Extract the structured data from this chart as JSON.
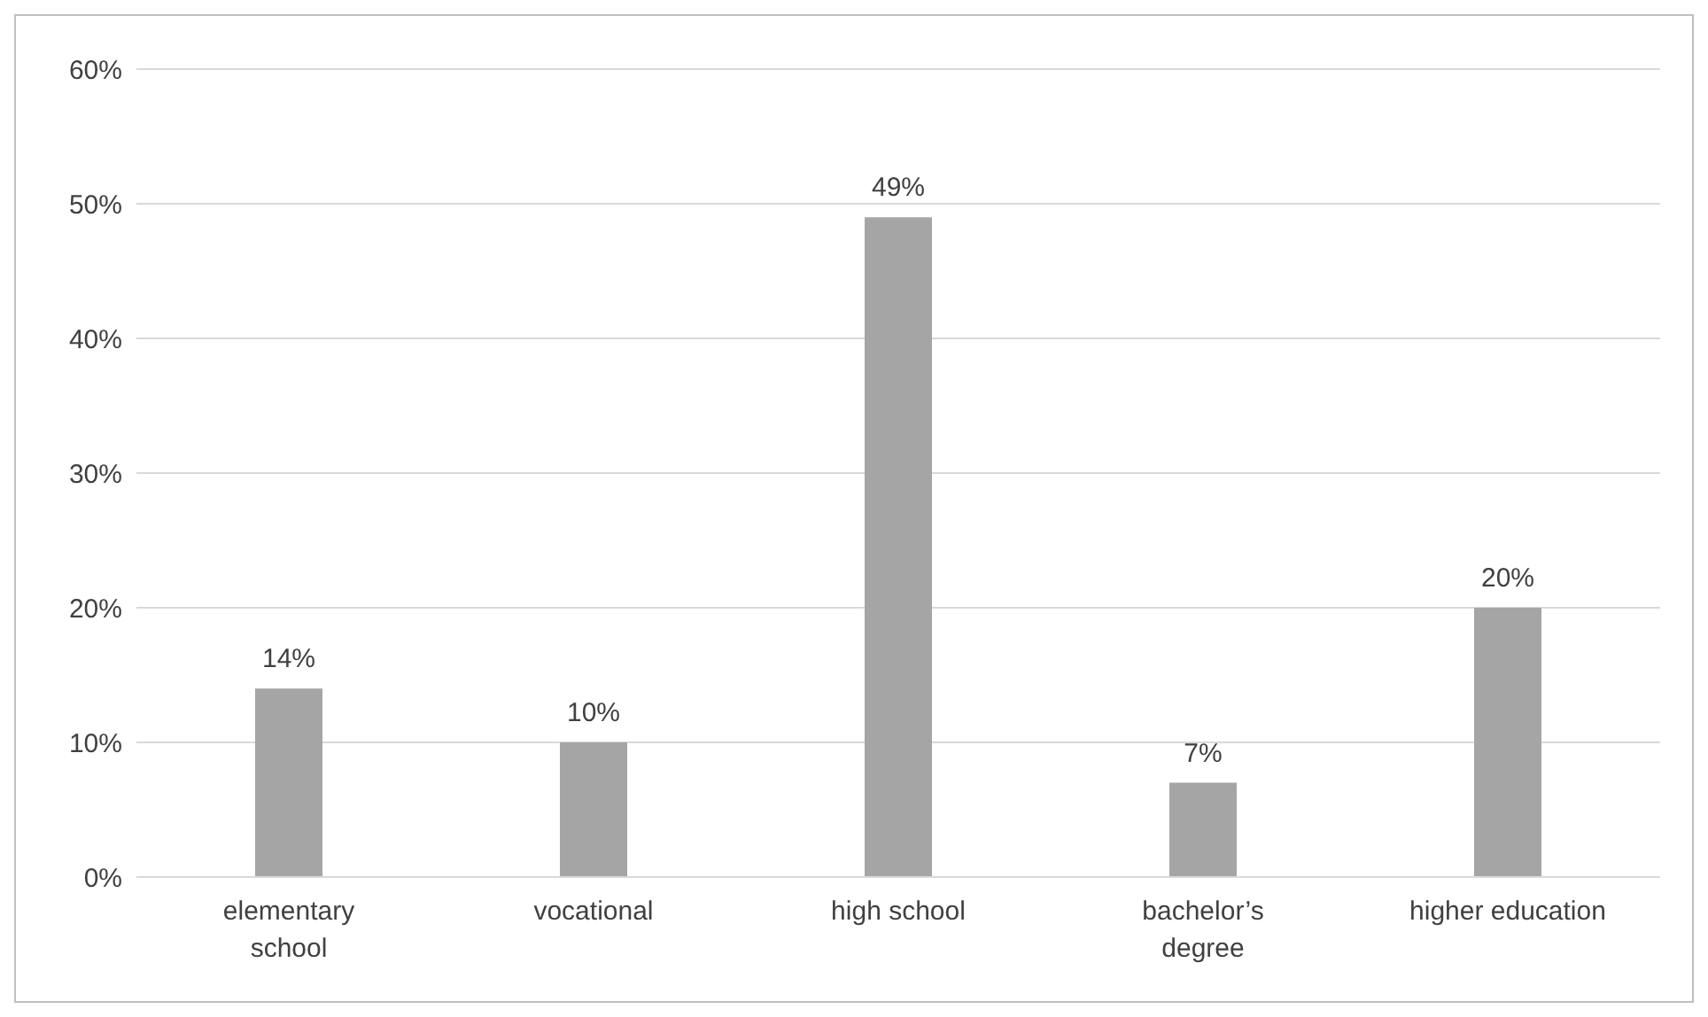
{
  "chart_data": {
    "type": "bar",
    "categories": [
      "elementary school",
      "vocational",
      "high school",
      "bachelor’s degree",
      "higher education"
    ],
    "values": [
      14,
      10,
      49,
      7,
      20
    ],
    "value_labels": [
      "14%",
      "10%",
      "49%",
      "7%",
      "20%"
    ],
    "color": "#a5a5a5",
    "ylim": [
      0,
      60
    ],
    "yticks": [
      {
        "value": 0,
        "label": "0%"
      },
      {
        "value": 10,
        "label": "10%"
      },
      {
        "value": 20,
        "label": "20%"
      },
      {
        "value": 30,
        "label": "30%"
      },
      {
        "value": 40,
        "label": "40%"
      },
      {
        "value": 50,
        "label": "50%"
      },
      {
        "value": 60,
        "label": "60%"
      }
    ],
    "grid": "y"
  }
}
